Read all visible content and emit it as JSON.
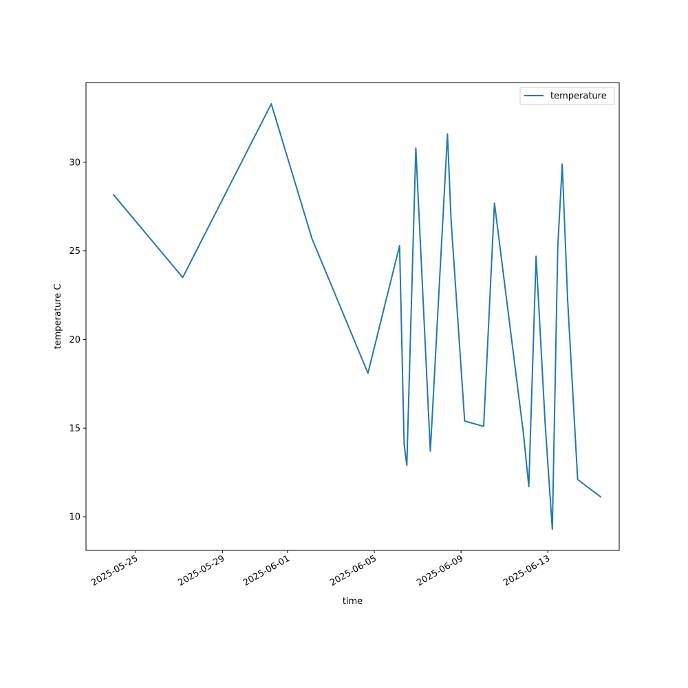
{
  "chart_data": {
    "type": "line",
    "title": "",
    "xlabel": "time",
    "ylabel": "temperature C",
    "x_tick_labels": [
      "2025-05-25",
      "2025-05-29",
      "2025-06-01",
      "2025-06-05",
      "2025-06-09",
      "2025-06-13"
    ],
    "y_tick_labels": [
      "10",
      "15",
      "20",
      "25",
      "30"
    ],
    "legend_position": "top-right",
    "grid": false,
    "line_color": "#1f77b4",
    "xlim": [
      "2025-05-22T17:00",
      "2025-06-16T07:00"
    ],
    "ylim": [
      8.1,
      34.5
    ],
    "series": [
      {
        "name": "temperature",
        "x": [
          "2025-05-23T23:00",
          "2025-05-27T04:00",
          "2025-05-31T06:00",
          "2025-06-02T03:00",
          "2025-06-04T17:00",
          "2025-06-06T04:00",
          "2025-06-06T09:00",
          "2025-06-06T12:00",
          "2025-06-06T22:00",
          "2025-06-07T14:00",
          "2025-06-08T09:00",
          "2025-06-08T13:00",
          "2025-06-09T04:00",
          "2025-06-10T01:00",
          "2025-06-10T13:00",
          "2025-06-11T21:00",
          "2025-06-12T03:00",
          "2025-06-12T11:00",
          "2025-06-12T21:00",
          "2025-06-13T05:00",
          "2025-06-13T11:00",
          "2025-06-13T16:00",
          "2025-06-13T22:00",
          "2025-06-14T09:00",
          "2025-06-15T11:00"
        ],
        "values": [
          28.2,
          23.5,
          33.3,
          25.7,
          18.1,
          25.3,
          14.1,
          12.9,
          30.8,
          13.7,
          31.6,
          26.7,
          15.4,
          15.1,
          27.7,
          14.7,
          11.7,
          24.7,
          15.3,
          9.3,
          25.2,
          29.9,
          22.2,
          12.1,
          11.1
        ]
      }
    ]
  }
}
